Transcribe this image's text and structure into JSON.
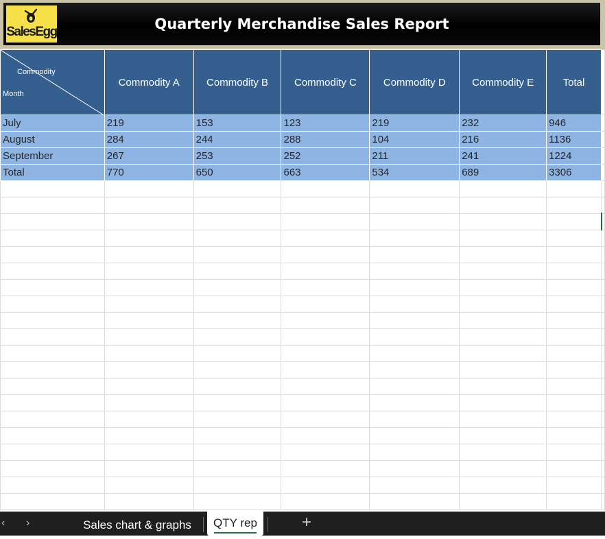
{
  "report": {
    "title": "Quarterly Merchandise Sales Report",
    "logo_text": "SalesEgg"
  },
  "table": {
    "corner_top": "Commodity",
    "corner_bottom": "Month",
    "headers": [
      "Commodity A",
      "Commodity B",
      "Commodity C",
      "Commodity D",
      "Commodity E",
      "Total"
    ],
    "rows": [
      {
        "label": "July",
        "cells": [
          "219",
          "153",
          "123",
          "219",
          "232",
          "946"
        ]
      },
      {
        "label": "August",
        "cells": [
          "284",
          "244",
          "288",
          "104",
          "216",
          "1136"
        ]
      },
      {
        "label": "September",
        "cells": [
          "267",
          "253",
          "252",
          "211",
          "241",
          "1224"
        ]
      },
      {
        "label": "Total",
        "cells": [
          "770",
          "650",
          "663",
          "534",
          "689",
          "3306"
        ]
      }
    ],
    "header_color": "#355f8f",
    "row_color": "#8eb4e3"
  },
  "tabs": {
    "sheets": [
      "Sales chart & graphs",
      "QTY rep"
    ],
    "active": "QTY rep",
    "prev_icon": "chevron-left-icon",
    "next_icon": "chevron-right-icon",
    "add_icon": "plus-icon"
  }
}
